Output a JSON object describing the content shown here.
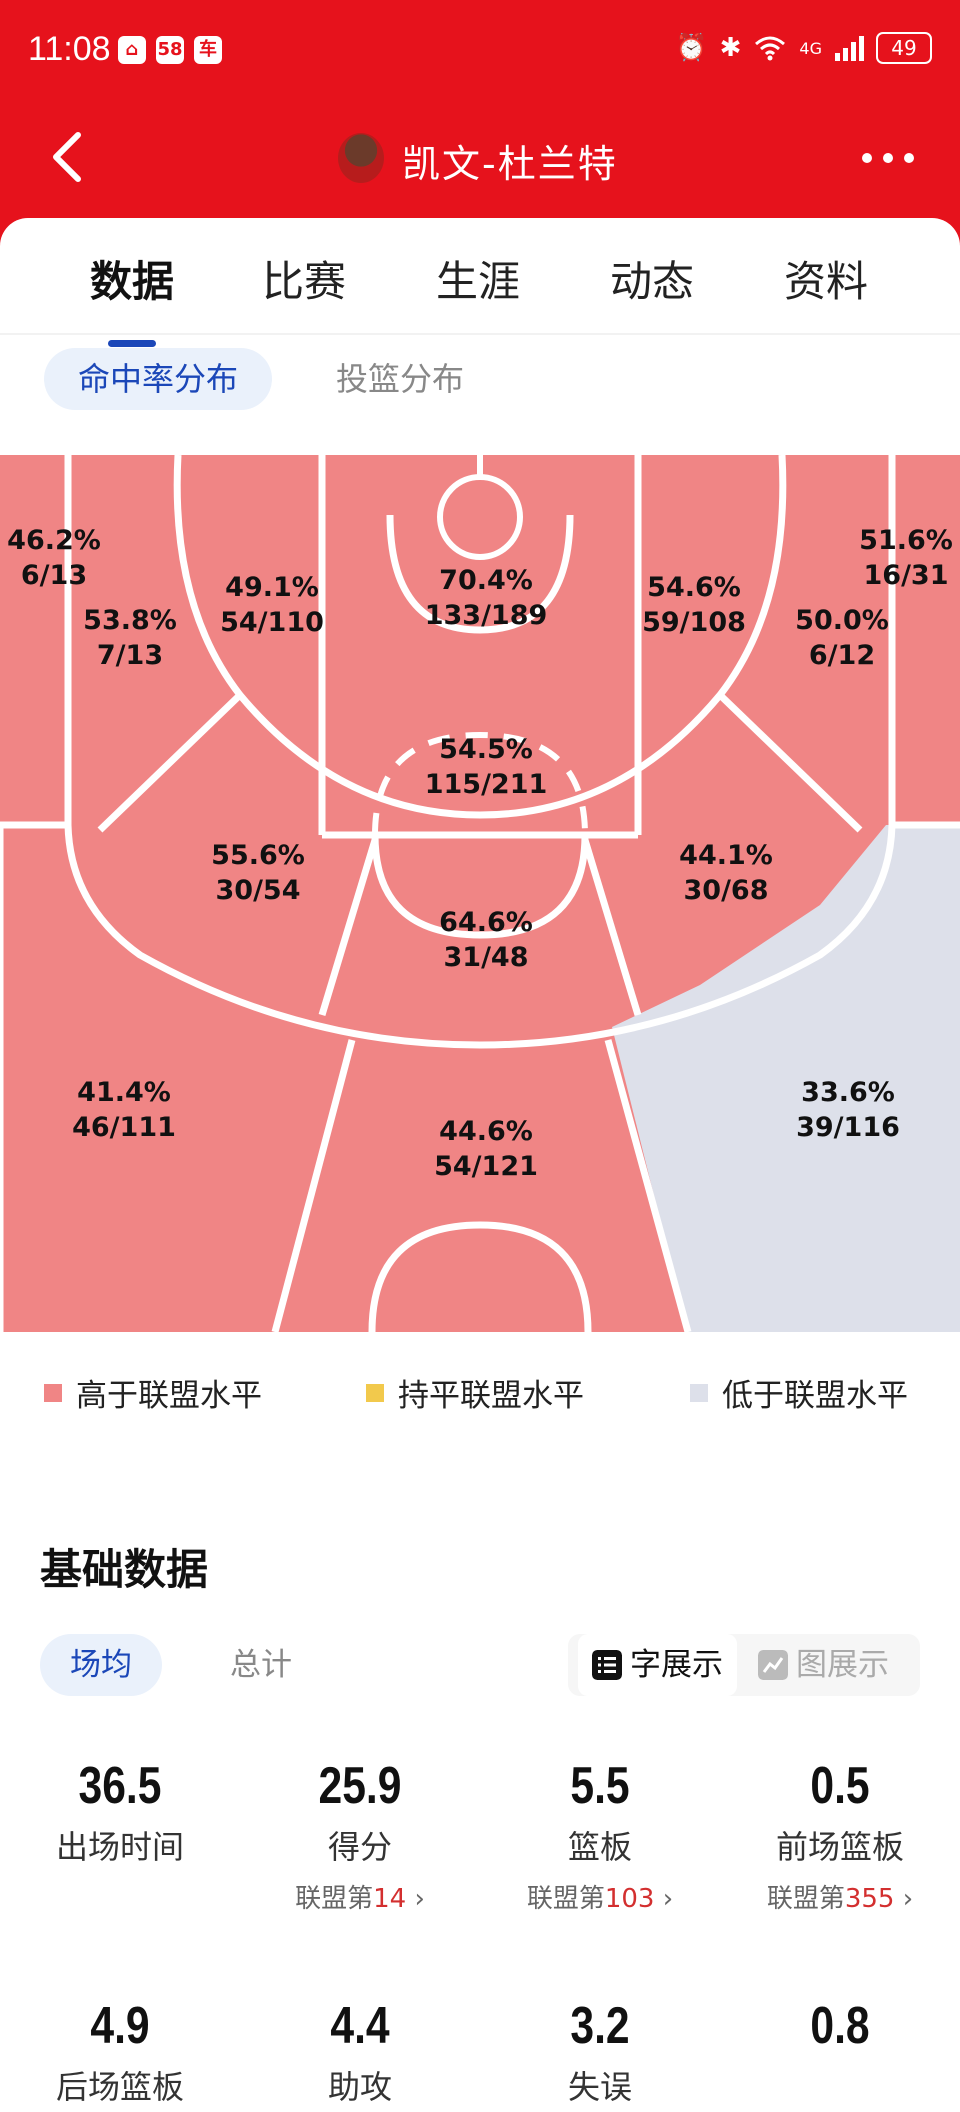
{
  "status_bar": {
    "time": "11:08",
    "app_icons": [
      "home-app-icon",
      "58-app-icon",
      "dongchedi-app-icon"
    ],
    "app_icon_text": [
      "⌂",
      "58",
      "车"
    ],
    "network": "4G",
    "battery": "49"
  },
  "header": {
    "title": "凯文-杜兰特"
  },
  "tabs": [
    "数据",
    "比赛",
    "生涯",
    "动态",
    "资料"
  ],
  "subtabs": [
    "命中率分布",
    "投篮分布"
  ],
  "court": {
    "zones": [
      {
        "id": "left-corner-3",
        "pct": "46.2%",
        "made_att": "6/13",
        "level": "above"
      },
      {
        "id": "left-baseline-mid",
        "pct": "53.8%",
        "made_att": "7/13",
        "level": "above"
      },
      {
        "id": "left-elbow-mid",
        "pct": "49.1%",
        "made_att": "54/110",
        "level": "above"
      },
      {
        "id": "restricted-area",
        "pct": "70.4%",
        "made_att": "133/189",
        "level": "above"
      },
      {
        "id": "right-elbow-mid",
        "pct": "54.6%",
        "made_att": "59/108",
        "level": "above"
      },
      {
        "id": "right-baseline-mid",
        "pct": "50.0%",
        "made_att": "6/12",
        "level": "above"
      },
      {
        "id": "right-corner-3",
        "pct": "51.6%",
        "made_att": "16/31",
        "level": "above"
      },
      {
        "id": "paint-non-ra",
        "pct": "54.5%",
        "made_att": "115/211",
        "level": "above"
      },
      {
        "id": "left-wing-mid",
        "pct": "55.6%",
        "made_att": "30/54",
        "level": "above"
      },
      {
        "id": "top-key-mid",
        "pct": "64.6%",
        "made_att": "31/48",
        "level": "above"
      },
      {
        "id": "right-wing-mid",
        "pct": "44.1%",
        "made_att": "30/68",
        "level": "above"
      },
      {
        "id": "left-wing-3",
        "pct": "41.4%",
        "made_att": "46/111",
        "level": "above"
      },
      {
        "id": "top-3",
        "pct": "44.6%",
        "made_att": "54/121",
        "level": "above"
      },
      {
        "id": "right-wing-3",
        "pct": "33.6%",
        "made_att": "39/116",
        "level": "below"
      }
    ]
  },
  "legend": [
    {
      "label": "高于联盟水平",
      "color": "#f08585"
    },
    {
      "label": "持平联盟水平",
      "color": "#f2c94c"
    },
    {
      "label": "低于联盟水平",
      "color": "#dde0ea"
    }
  ],
  "basic": {
    "title": "基础数据",
    "tabs": [
      "场均",
      "总计"
    ],
    "view_toggle": [
      "字展示",
      "图展示"
    ],
    "rank_prefix": "联盟第",
    "stats": [
      {
        "value": "36.5",
        "label": "出场时间",
        "rank": ""
      },
      {
        "value": "25.9",
        "label": "得分",
        "rank": "14"
      },
      {
        "value": "5.5",
        "label": "篮板",
        "rank": "103"
      },
      {
        "value": "0.5",
        "label": "前场篮板",
        "rank": "355"
      },
      {
        "value": "4.9",
        "label": "后场篮板",
        "rank": ""
      },
      {
        "value": "4.4",
        "label": "助攻",
        "rank": ""
      },
      {
        "value": "3.2",
        "label": "失误",
        "rank": ""
      },
      {
        "value": "0.8",
        "label": "",
        "rank": ""
      }
    ]
  },
  "colors": {
    "header_red": "#e6121c",
    "above": "#f08585",
    "equal": "#f2c94c",
    "below": "#dde0ea",
    "accent_blue": "#1b47b8",
    "rank_red": "#d32f2f"
  }
}
